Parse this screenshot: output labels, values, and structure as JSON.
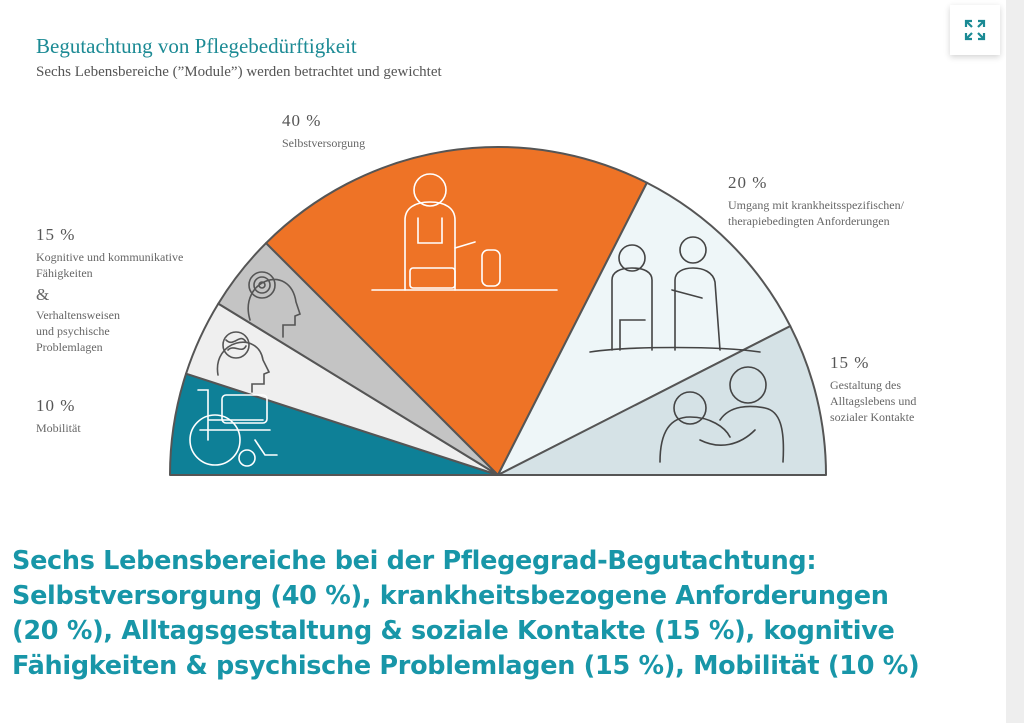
{
  "header": {
    "title": "Begutachtung von Pflegebedürftigkeit",
    "subtitle": "Sechs Lebensbereiche (”Module”) werden betrachtet und gewichtet"
  },
  "chart_data": {
    "type": "pie",
    "variant": "semicircle",
    "title": "Begutachtung von Pflegebedürftigkeit",
    "slices": [
      {
        "name": "Mobilität",
        "value": 10,
        "color": "#0e8097",
        "icon": "wheelchair-icon"
      },
      {
        "name": "Kognitive und kommunikative Fähigkeiten",
        "value": 7.5,
        "color": "#efefef",
        "icon": "head-scribble-icon"
      },
      {
        "name": "Verhaltensweisen und psychische Problemlagen",
        "value": 7.5,
        "color": "#c4c4c4",
        "icon": "head-spiral-icon"
      },
      {
        "name": "Selbstversorgung",
        "value": 40,
        "color": "#ee7326",
        "icon": "person-cooking-icon"
      },
      {
        "name": "Umgang mit krankheitsspezifischen/ therapiebedingten Anforderungen",
        "value": 20,
        "color": "#eef6f8",
        "icon": "patient-nurse-icon"
      },
      {
        "name": "Gestaltung des Alltagslebens und sozialer Kontakte",
        "value": 15,
        "color": "#d5e2e6",
        "icon": "people-hugging-icon"
      }
    ]
  },
  "labels": {
    "selbst": {
      "pct": "40 %",
      "text": "Selbstversorgung"
    },
    "umgang": {
      "pct": "20 %",
      "text1": "Umgang mit krankheitsspezifischen/",
      "text2": "therapiebedingten Anforderungen"
    },
    "alltag": {
      "pct": "15 %",
      "text1": "Gestaltung des",
      "text2": "Alltagslebens und",
      "text3": "sozialer Kontakte"
    },
    "kogn": {
      "pct": "15 %",
      "text1": "Kognitive und kommunikative",
      "text2": "Fähigkeiten",
      "amp": "&",
      "text3": "Verhaltensweisen",
      "text4": "und psychische",
      "text5": "Problemlagen"
    },
    "mob": {
      "pct": "10 %",
      "text": "Mobilität"
    }
  },
  "caption": {
    "lines": [
      "Sechs Lebensbereiche bei der Pflegegrad-Begutachtung:",
      "Selbstversorgung (40 %), krankheitsbezogene Anforderungen",
      "(20 %), Alltagsgestaltung & soziale Kontakte (15 %), kognitive",
      "Fähigkeiten & psychische Problemlagen (15 %), Mobilität (10 %)"
    ]
  },
  "controls": {
    "expand_icon": "expand-arrows-icon"
  }
}
